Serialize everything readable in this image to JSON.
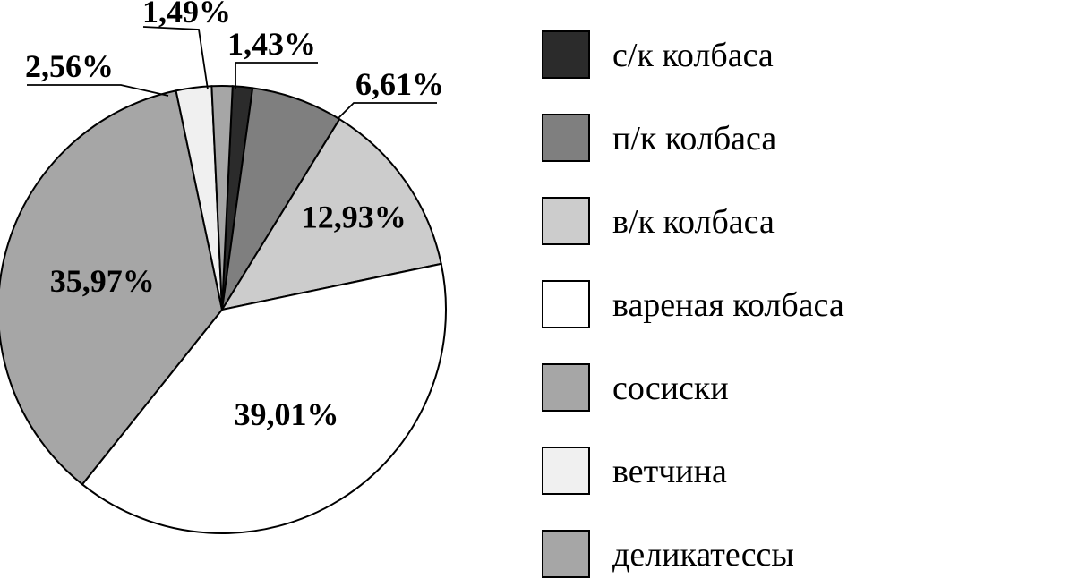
{
  "chart_data": {
    "type": "pie",
    "title": "",
    "categories": [
      "с/к колбаса",
      "п/к колбаса",
      "в/к колбаса",
      "вареная колбаса",
      "сосиски",
      "ветчина",
      "деликатессы"
    ],
    "values": [
      1.43,
      6.61,
      12.93,
      39.01,
      35.97,
      2.56,
      1.49
    ],
    "value_labels": [
      "1,43%",
      "6,61%",
      "12,93%",
      "39,01%",
      "35,97%",
      "2,56%",
      "1,49%"
    ],
    "colors": [
      "#2b2b2b",
      "#7f7f7f",
      "#cccccc",
      "#ffffff",
      "#a6a6a6",
      "#f0f0f0",
      "#a6a6a6"
    ],
    "legend_position": "right"
  }
}
